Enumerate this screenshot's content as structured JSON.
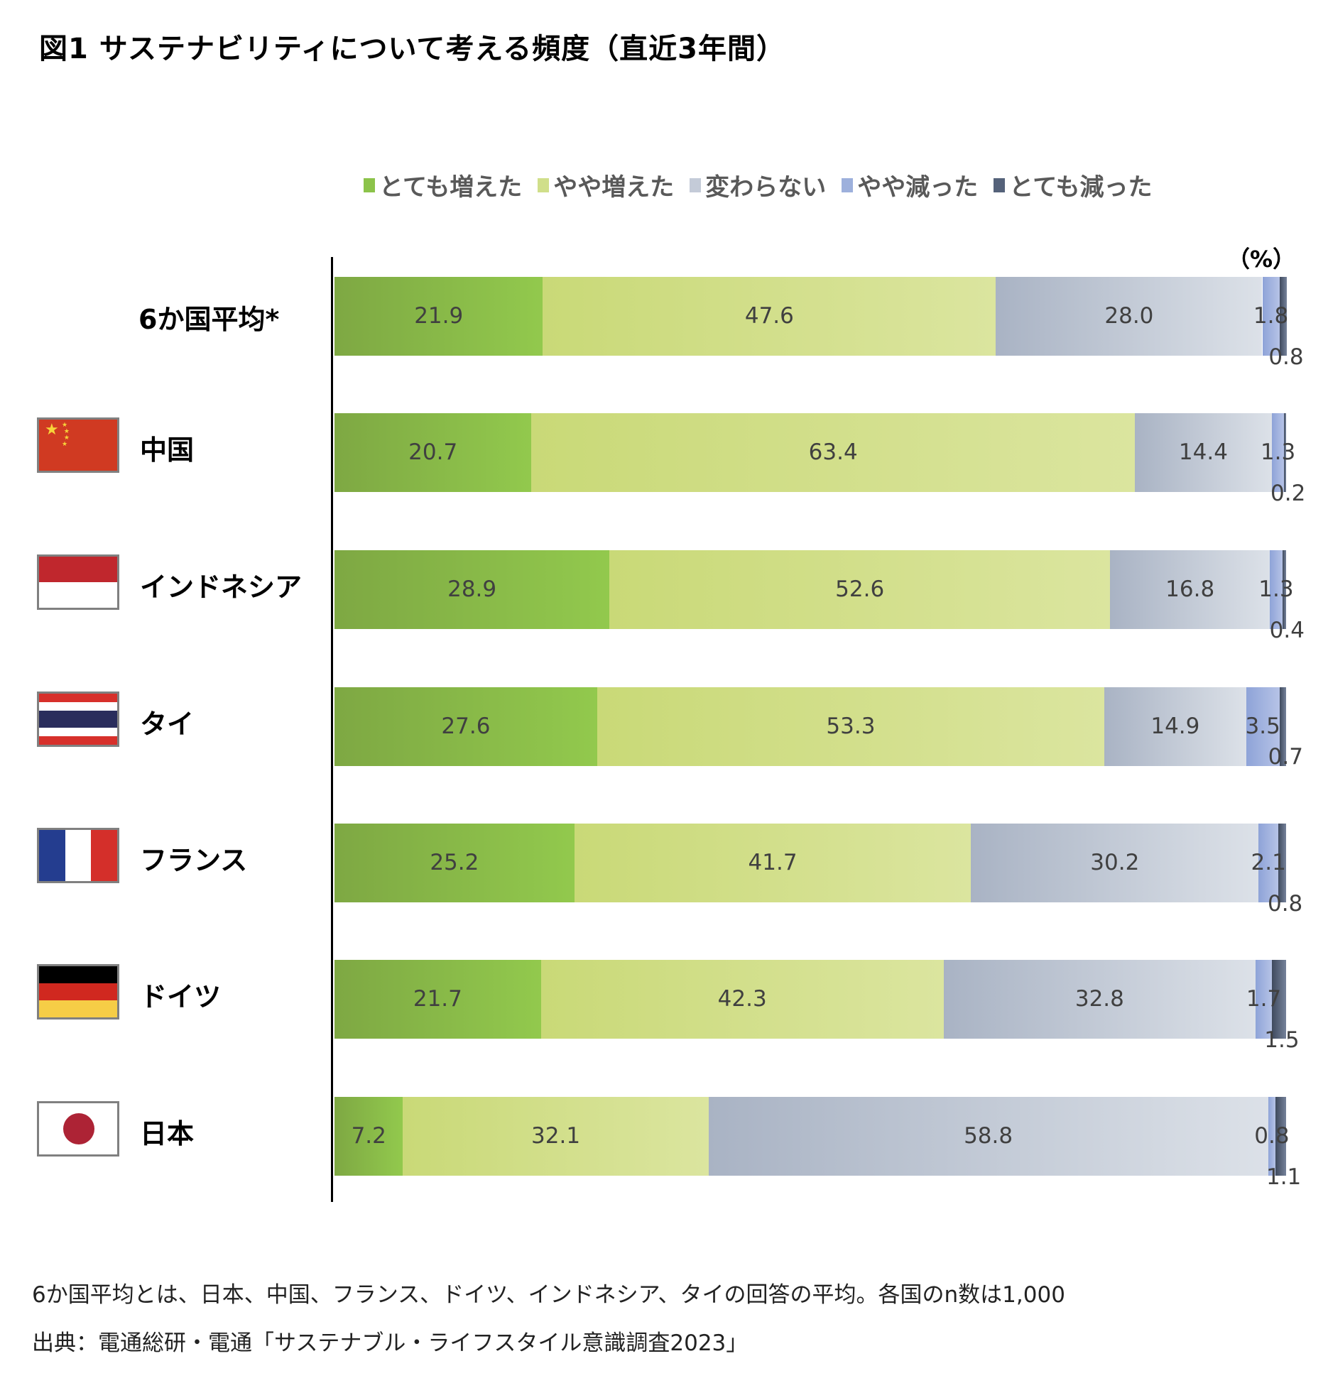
{
  "title": "図1  サステナビリティについて考える頻度（直近3年間）",
  "unit_label": "（%）",
  "footnotes": [
    "6か国平均とは、日本、中国、フランス、ドイツ、インドネシア、タイの回答の平均。各国のn数は1,000",
    "出典：電通総研・電通「サステナブル・ライフスタイル意識調査2023」"
  ],
  "chart_data": {
    "type": "bar",
    "orientation": "horizontal-stacked-100",
    "title": "図1  サステナビリティについて考える頻度（直近3年間）",
    "xlabel": "",
    "ylabel": "",
    "unit": "%",
    "xlim": [
      0,
      100
    ],
    "legend_position": "top",
    "categories": [
      "6か国平均*",
      "中国",
      "インドネシア",
      "タイ",
      "フランス",
      "ドイツ",
      "日本"
    ],
    "flags": [
      "",
      "china",
      "indonesia",
      "thailand",
      "france",
      "germany",
      "japan"
    ],
    "series": [
      {
        "name": "とても増えた",
        "color": "#8cc34a",
        "values": [
          21.9,
          20.7,
          28.9,
          27.6,
          25.2,
          21.7,
          7.2
        ]
      },
      {
        "name": "やや増えた",
        "color": "#d0df8a",
        "values": [
          47.6,
          63.4,
          52.6,
          53.3,
          41.7,
          42.3,
          32.1
        ]
      },
      {
        "name": "変わらない",
        "color": "#c4cbd8",
        "values": [
          28.0,
          14.4,
          16.8,
          14.9,
          30.2,
          32.8,
          58.8
        ]
      },
      {
        "name": "やや減った",
        "color": "#9db0dc",
        "values": [
          1.8,
          1.3,
          1.3,
          3.5,
          2.1,
          1.7,
          0.8
        ]
      },
      {
        "name": "とても減った",
        "color": "#55627a",
        "values": [
          0.8,
          0.2,
          0.4,
          0.7,
          0.8,
          1.5,
          1.1
        ]
      }
    ]
  }
}
